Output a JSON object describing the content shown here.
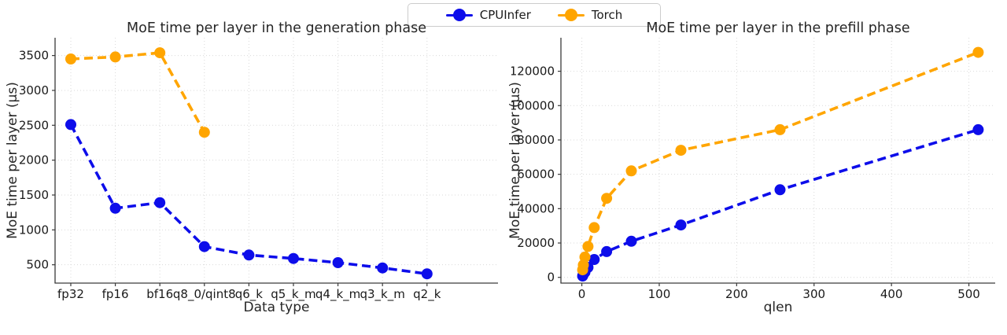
{
  "legend": {
    "items": [
      {
        "label": "CPUInfer",
        "color": "#0d0dea"
      },
      {
        "label": "Torch",
        "color": "#ffa500"
      }
    ]
  },
  "chart_data": [
    {
      "type": "line",
      "title": "MoE time per layer in the generation phase",
      "xlabel": "Data type",
      "ylabel": "MoE time per layer (µs)",
      "grid": true,
      "line_style": "dashed",
      "marker": "circle",
      "x_axis": {
        "kind": "categorical",
        "categories": [
          "fp32",
          "fp16",
          "bf16",
          "q8_0/qint8",
          "q6_k",
          "q5_k_m",
          "q4_k_m",
          "q3_k_m",
          "q2_k"
        ]
      },
      "xlim": [
        -0.353,
        9.594
      ],
      "yticks": [
        500,
        1000,
        1500,
        2000,
        2500,
        3000,
        3500
      ],
      "ylim": [
        237,
        3755
      ],
      "series": [
        {
          "name": "CPUInfer",
          "color": "#0d0dea",
          "values": [
            2510,
            1310,
            1390,
            760,
            640,
            590,
            530,
            455,
            370
          ]
        },
        {
          "name": "Torch",
          "color": "#ffa500",
          "values": [
            3450,
            3480,
            3540,
            2400,
            null,
            null,
            null,
            null,
            null
          ]
        }
      ]
    },
    {
      "type": "line",
      "title": "MoE time per layer in the prefill phase",
      "xlabel": "qlen",
      "ylabel": "MoE time per layer (µs)",
      "grid": true,
      "line_style": "dashed",
      "marker": "circle",
      "x_axis": {
        "kind": "linear",
        "ticks": [
          0,
          100,
          200,
          300,
          400,
          500
        ]
      },
      "xlim": [
        -27,
        534
      ],
      "yticks": [
        0,
        20000,
        40000,
        60000,
        80000,
        100000,
        120000
      ],
      "ylim": [
        -3340,
        139500
      ],
      "series": [
        {
          "name": "CPUInfer",
          "color": "#0d0dea",
          "x": [
            1,
            2,
            4,
            8,
            16,
            32,
            64,
            128,
            256,
            512
          ],
          "values": [
            800,
            1700,
            3000,
            5800,
            10400,
            15000,
            21000,
            30500,
            51000,
            86000
          ]
        },
        {
          "name": "Torch",
          "color": "#ffa500",
          "x": [
            1,
            2,
            4,
            8,
            16,
            32,
            64,
            128,
            256,
            512
          ],
          "values": [
            4400,
            7200,
            11800,
            18000,
            29000,
            46000,
            62000,
            74000,
            86000,
            131000
          ]
        }
      ]
    }
  ]
}
